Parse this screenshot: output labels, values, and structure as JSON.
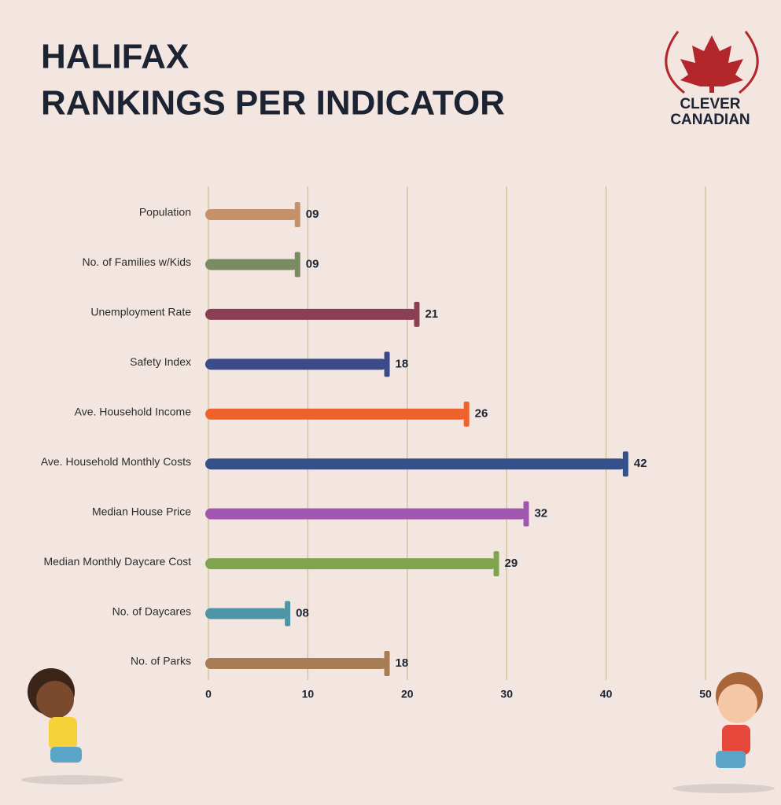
{
  "title": [
    "HALIFAX",
    "RANKINGS PER INDICATOR"
  ],
  "logo": [
    "CLEVER",
    "CANADIAN"
  ],
  "chart_data": {
    "type": "hbar",
    "categories": [
      "Population",
      "No. of Families w/Kids",
      "Unemployment Rate",
      "Safety Index",
      "Ave. Household Income",
      "Ave. Household Monthly Costs",
      "Median House Price",
      "Median Monthly Daycare Cost",
      "No. of Daycares",
      "No. of Parks"
    ],
    "values": [
      9,
      9,
      21,
      18,
      26,
      42,
      32,
      29,
      8,
      18
    ],
    "value_labels": [
      "09",
      "09",
      "21",
      "18",
      "26",
      "42",
      "32",
      "29",
      "08",
      "18"
    ],
    "colors": [
      "#c4916a",
      "#7a8a62",
      "#8a3f55",
      "#3c4a8a",
      "#f0622c",
      "#345189",
      "#a157b0",
      "#7fa34e",
      "#4f95a6",
      "#a87d55"
    ],
    "xlim": [
      0,
      50
    ],
    "xticks": [
      0,
      10,
      20,
      30,
      40,
      50
    ],
    "grid": true
  }
}
